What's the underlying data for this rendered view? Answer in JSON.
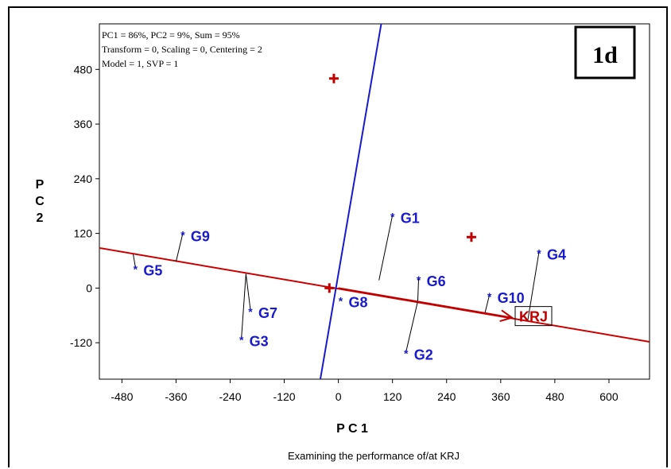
{
  "figure_badge": "1d",
  "info_lines": [
    "PC1 = 86%, PC2 = 9%, Sum = 95%",
    "Transform = 0, Scaling = 0, Centering = 2",
    "Model = 1, SVP = 1"
  ],
  "caption": "Examining the performance of/at KRJ",
  "colors": {
    "genotype": "#1a1acc",
    "environment": "#c00000",
    "aec_axis": "#cc0000",
    "ortho_axis": "#1a1acc"
  },
  "chart_data": {
    "type": "scatter",
    "xlabel": "P C 1",
    "ylabel": "P C 2",
    "xlim": [
      -530,
      690
    ],
    "ylim": [
      -200,
      580
    ],
    "xticks": [
      -480,
      -360,
      -240,
      -120,
      0,
      120,
      240,
      360,
      480,
      600
    ],
    "yticks": [
      -120,
      0,
      120,
      240,
      360,
      480
    ],
    "grid": false,
    "genotypes": [
      {
        "name": "G1",
        "x": 120,
        "y": 160
      },
      {
        "name": "G2",
        "x": 150,
        "y": -140
      },
      {
        "name": "G3",
        "x": -215,
        "y": -110
      },
      {
        "name": "G4",
        "x": 445,
        "y": 80
      },
      {
        "name": "G5",
        "x": -450,
        "y": 45
      },
      {
        "name": "G6",
        "x": 178,
        "y": 22
      },
      {
        "name": "G7",
        "x": -195,
        "y": -48
      },
      {
        "name": "G8",
        "x": 5,
        "y": -25
      },
      {
        "name": "G9",
        "x": -345,
        "y": 120
      },
      {
        "name": "G10",
        "x": 335,
        "y": -15
      }
    ],
    "environments": [
      {
        "name": "",
        "x": -10,
        "y": 460
      },
      {
        "name": "",
        "x": 295,
        "y": 112
      },
      {
        "name": "",
        "x": -20,
        "y": 0
      }
    ],
    "target_environment": {
      "name": "KRJ",
      "x": 385,
      "y": -65
    },
    "aec_abscissa": {
      "x1": -530,
      "y1": 88,
      "x2": 690,
      "y2": -118
    },
    "aec_ordinate": {
      "x1": 95,
      "y1": 580,
      "x2": -40,
      "y2": -200
    },
    "projections": [
      {
        "from": "G1",
        "foot": [
          90,
          17
        ]
      },
      {
        "from": "G2",
        "foot": [
          176,
          -29
        ]
      },
      {
        "from": "G3",
        "foot": [
          -205,
          31
        ]
      },
      {
        "from": "G4",
        "foot": [
          420,
          -71
        ]
      },
      {
        "from": "G5",
        "foot": [
          -455,
          74
        ]
      },
      {
        "from": "G6",
        "foot": [
          176,
          -29
        ]
      },
      {
        "from": "G7",
        "foot": [
          -205,
          31
        ]
      },
      {
        "from": "G9",
        "foot": [
          -360,
          58
        ]
      },
      {
        "from": "G10",
        "foot": [
          325,
          -55
        ]
      }
    ]
  }
}
